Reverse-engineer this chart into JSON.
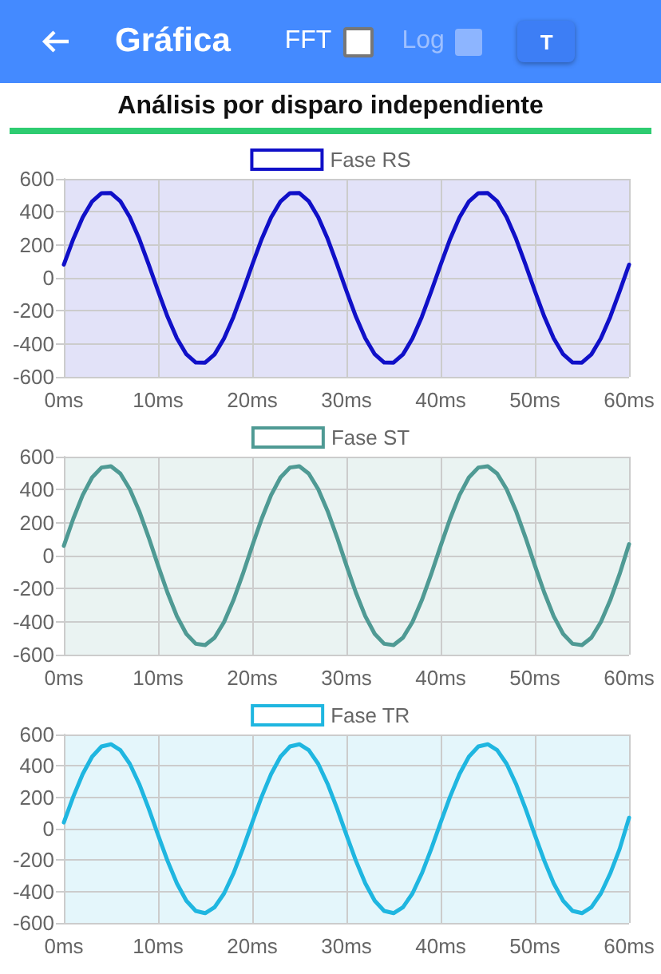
{
  "chart_data": [
    {
      "type": "other",
      "title": "Gráfica",
      "subtitle": "Análisis por disparo independiente",
      "annotations": [
        "FFT",
        "Log",
        "T"
      ]
    },
    {
      "type": "line",
      "x": [
        0,
        1,
        2,
        3,
        4,
        5,
        6,
        7,
        8,
        9,
        10,
        11,
        12,
        13,
        14,
        15,
        16,
        17,
        18,
        19,
        20,
        21,
        22,
        23,
        24,
        25,
        26,
        27,
        28,
        29,
        30,
        31,
        32,
        33,
        34,
        35,
        36,
        37,
        38,
        39,
        40,
        41,
        42,
        43,
        44,
        45,
        46,
        47,
        48,
        49,
        50,
        51,
        52,
        53,
        54,
        55,
        56,
        57,
        58,
        59,
        60
      ],
      "xlim": [
        0,
        60
      ],
      "xticks": [
        {
          "value": 0,
          "label": "0ms"
        },
        {
          "value": 10,
          "label": "10ms"
        },
        {
          "value": 20,
          "label": "20ms"
        },
        {
          "value": 30,
          "label": "30ms"
        },
        {
          "value": 40,
          "label": "40ms"
        },
        {
          "value": 50,
          "label": "50ms"
        },
        {
          "value": 60,
          "label": "60ms"
        }
      ],
      "ylim": [
        -600,
        600
      ],
      "yticks": [
        -600,
        -400,
        -200,
        0,
        200,
        400,
        600
      ],
      "grid": true,
      "legend": "top",
      "marker": "none",
      "line_style": "solid",
      "series": [
        {
          "name": "Fase RS",
          "color": "#1010c8",
          "values": [
            80,
            235,
            367,
            463,
            513,
            514,
            464,
            368,
            237,
            82,
            -80,
            -235,
            -367,
            -463,
            -513,
            -514,
            -464,
            -368,
            -237,
            -82,
            80,
            235,
            367,
            463,
            513,
            514,
            464,
            368,
            237,
            82,
            -80,
            -235,
            -367,
            -463,
            -513,
            -514,
            -464,
            -368,
            -237,
            -82,
            80,
            235,
            367,
            463,
            513,
            514,
            464,
            368,
            237,
            82,
            -80,
            -235,
            -367,
            -463,
            -513,
            -514,
            -464,
            -368,
            -237,
            -82,
            80
          ]
        }
      ]
    },
    {
      "type": "line",
      "x": [
        0,
        1,
        2,
        3,
        4,
        5,
        6,
        7,
        8,
        9,
        10,
        11,
        12,
        13,
        14,
        15,
        16,
        17,
        18,
        19,
        20,
        21,
        22,
        23,
        24,
        25,
        26,
        27,
        28,
        29,
        30,
        31,
        32,
        33,
        34,
        35,
        36,
        37,
        38,
        39,
        40,
        41,
        42,
        43,
        44,
        45,
        46,
        47,
        48,
        49,
        50,
        51,
        52,
        53,
        54,
        55,
        56,
        57,
        58,
        59,
        60
      ],
      "xlim": [
        0,
        60
      ],
      "xticks": [
        {
          "value": 0,
          "label": "0ms"
        },
        {
          "value": 10,
          "label": "10ms"
        },
        {
          "value": 20,
          "label": "20ms"
        },
        {
          "value": 30,
          "label": "30ms"
        },
        {
          "value": 40,
          "label": "40ms"
        },
        {
          "value": 50,
          "label": "50ms"
        },
        {
          "value": 60,
          "label": "60ms"
        }
      ],
      "ylim": [
        -600,
        600
      ],
      "yticks": [
        -600,
        -400,
        -200,
        0,
        200,
        400,
        600
      ],
      "grid": true,
      "legend": "top",
      "marker": "none",
      "line_style": "solid",
      "series": [
        {
          "name": "Fase ST",
          "color": "#4f9a94",
          "values": [
            60,
            224,
            367,
            474,
            534,
            542,
            497,
            403,
            270,
            111,
            -60,
            -224,
            -367,
            -474,
            -534,
            -542,
            -497,
            -403,
            -270,
            -111,
            60,
            224,
            367,
            474,
            534,
            542,
            497,
            403,
            270,
            111,
            -60,
            -224,
            -367,
            -474,
            -534,
            -542,
            -497,
            -403,
            -270,
            -111,
            60,
            224,
            367,
            474,
            534,
            542,
            497,
            403,
            270,
            111,
            -60,
            -224,
            -367,
            -474,
            -534,
            -542,
            -497,
            -403,
            -270,
            -111,
            70
          ]
        }
      ]
    },
    {
      "type": "line",
      "x": [
        0,
        1,
        2,
        3,
        4,
        5,
        6,
        7,
        8,
        9,
        10,
        11,
        12,
        13,
        14,
        15,
        16,
        17,
        18,
        19,
        20,
        21,
        22,
        23,
        24,
        25,
        26,
        27,
        28,
        29,
        30,
        31,
        32,
        33,
        34,
        35,
        36,
        37,
        38,
        39,
        40,
        41,
        42,
        43,
        44,
        45,
        46,
        47,
        48,
        49,
        50,
        51,
        52,
        53,
        54,
        55,
        56,
        57,
        58,
        59,
        60
      ],
      "xlim": [
        0,
        60
      ],
      "xticks": [
        {
          "value": 0,
          "label": "0ms"
        },
        {
          "value": 10,
          "label": "10ms"
        },
        {
          "value": 20,
          "label": "20ms"
        },
        {
          "value": 30,
          "label": "30ms"
        },
        {
          "value": 40,
          "label": "40ms"
        },
        {
          "value": 50,
          "label": "50ms"
        },
        {
          "value": 60,
          "label": "60ms"
        }
      ],
      "ylim": [
        -600,
        600
      ],
      "yticks": [
        -600,
        -400,
        -200,
        0,
        200,
        400,
        600
      ],
      "grid": true,
      "legend": "top",
      "marker": "none",
      "line_style": "solid",
      "series": [
        {
          "name": "Fase TR",
          "color": "#1fb6e0",
          "values": [
            40,
            204,
            348,
            459,
            524,
            538,
            500,
            413,
            285,
            129,
            -40,
            -204,
            -348,
            -459,
            -524,
            -538,
            -500,
            -413,
            -285,
            -129,
            40,
            204,
            348,
            459,
            524,
            538,
            500,
            413,
            285,
            129,
            -40,
            -204,
            -348,
            -459,
            -524,
            -538,
            -500,
            -413,
            -285,
            -129,
            40,
            204,
            348,
            459,
            524,
            538,
            500,
            413,
            285,
            129,
            -40,
            -204,
            -348,
            -459,
            -524,
            -538,
            -500,
            -413,
            -285,
            -129,
            70
          ]
        }
      ]
    }
  ]
}
